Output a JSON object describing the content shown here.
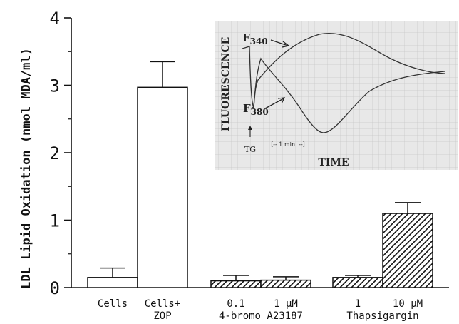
{
  "chart_data": {
    "type": "bar",
    "title": "",
    "xlabel": "",
    "ylabel": "LDL Lipid Oxidation (nmol  MDA/ml)",
    "ylim": [
      0,
      4
    ],
    "yticks": [
      "0",
      "1",
      "2",
      "3",
      "4"
    ],
    "grid": false,
    "groups": [
      {
        "label": "",
        "bars": [
          {
            "label": "Cells",
            "value": 0.15,
            "error": 0.14,
            "fill": "white"
          },
          {
            "label": "Cells+\nZOP",
            "value": 2.97,
            "error": 0.38,
            "fill": "white"
          }
        ]
      },
      {
        "label": "4-bromo A23187",
        "bars": [
          {
            "label": "0.1",
            "value": 0.1,
            "error": 0.08,
            "fill": "hatched"
          },
          {
            "label": "1 μM",
            "value": 0.11,
            "error": 0.05,
            "fill": "hatched"
          }
        ]
      },
      {
        "label": "Thapsigargin",
        "bars": [
          {
            "label": "1",
            "value": 0.15,
            "error": 0.03,
            "fill": "hatched"
          },
          {
            "label": "10 μM",
            "value": 1.1,
            "error": 0.16,
            "fill": "hatched"
          }
        ]
      }
    ],
    "inset": {
      "type": "line",
      "ylabel": "FLUORESCENCE",
      "xlabel": "TIME",
      "curve_labels": [
        "F340",
        "F380"
      ],
      "marker": "TG",
      "scale_bar": "[-- 1 min. --]",
      "grid": true,
      "background": "#e8e8e8"
    }
  }
}
